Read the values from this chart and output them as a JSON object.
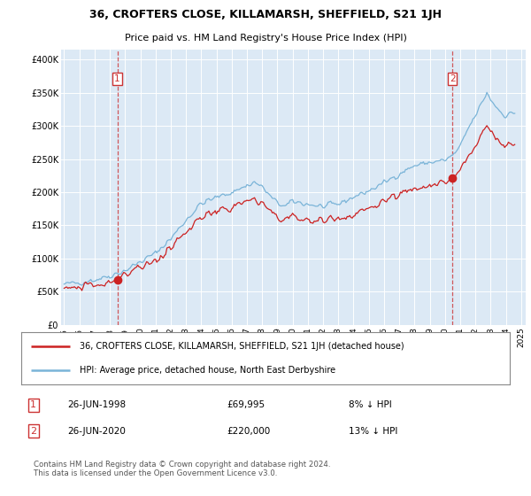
{
  "title": "36, CROFTERS CLOSE, KILLAMARSH, SHEFFIELD, S21 1JH",
  "subtitle": "Price paid vs. HM Land Registry's House Price Index (HPI)",
  "ylabel_ticks": [
    "£0",
    "£50K",
    "£100K",
    "£150K",
    "£200K",
    "£250K",
    "£300K",
    "£350K",
    "£400K"
  ],
  "ytick_values": [
    0,
    50000,
    100000,
    150000,
    200000,
    250000,
    300000,
    350000,
    400000
  ],
  "ylim": [
    0,
    415000
  ],
  "sale1_year": 1998.49,
  "sale1_price": 69995,
  "sale2_year": 2020.49,
  "sale2_price": 220000,
  "legend_line1": "36, CROFTERS CLOSE, KILLAMARSH, SHEFFIELD, S21 1JH (detached house)",
  "legend_line2": "HPI: Average price, detached house, North East Derbyshire",
  "footnote": "Contains HM Land Registry data © Crown copyright and database right 2024.\nThis data is licensed under the Open Government Licence v3.0.",
  "hpi_color": "#7ab4d8",
  "price_color": "#cc2222",
  "vline_color": "#cc3333",
  "background_color": "#dce9f5",
  "xtick_years": [
    1995,
    1996,
    1997,
    1998,
    1999,
    2000,
    2001,
    2002,
    2003,
    2004,
    2005,
    2006,
    2007,
    2008,
    2009,
    2010,
    2011,
    2012,
    2013,
    2014,
    2015,
    2016,
    2017,
    2018,
    2019,
    2020,
    2021,
    2022,
    2023,
    2024,
    2025
  ],
  "xlim": [
    1994.8,
    2025.3
  ]
}
